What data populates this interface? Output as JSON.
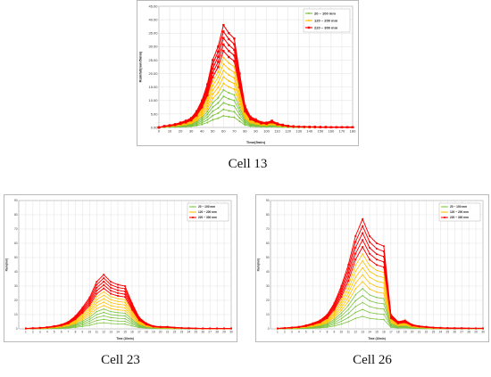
{
  "figures": [
    {
      "caption": "Cell 13"
    },
    {
      "caption": "Cell 23"
    },
    {
      "caption": "Cell 26"
    }
  ],
  "colors": {
    "green": "#7cc242",
    "yellow": "#ffc000",
    "red": "#ff0000",
    "grid": "#d9d9d9",
    "axis": "#808080"
  },
  "chart_data": [
    {
      "type": "line",
      "title": "",
      "xlabel": "Time(5min)",
      "ylabel": "Rainfall(mm/5min)",
      "xlim": [
        0,
        180
      ],
      "ylim": [
        0,
        45
      ],
      "xticks": [
        0,
        10,
        20,
        30,
        40,
        50,
        60,
        70,
        80,
        90,
        100,
        110,
        120,
        130,
        140,
        150,
        160,
        170,
        180
      ],
      "xtick_labels": [
        "0",
        "10",
        "20",
        "30",
        "40",
        "50",
        "60",
        "70",
        "80",
        "90",
        "100",
        "110",
        "120",
        "130",
        "140",
        "150",
        "160",
        "170",
        "180"
      ],
      "yticks": [
        0,
        5,
        10,
        15,
        20,
        25,
        30,
        35,
        40,
        45
      ],
      "ytick_labels": [
        "0.00",
        "5.00",
        "10.00",
        "15.00",
        "20.00",
        "25.00",
        "30.00",
        "35.00",
        "40.00",
        "45.00"
      ],
      "grid": true,
      "legend_position": "top-right",
      "legend": [
        "20 ~ 100 mm",
        "120 ~ 200 mm",
        "220 ~ 300 mm"
      ],
      "x": [
        0,
        5,
        10,
        15,
        20,
        25,
        30,
        35,
        40,
        45,
        50,
        55,
        60,
        65,
        70,
        75,
        80,
        85,
        90,
        95,
        100,
        105,
        110,
        115,
        120,
        125,
        130,
        135,
        140,
        145,
        150,
        155,
        160,
        165,
        170,
        175,
        180
      ],
      "base_profile": [
        0,
        0.5,
        0.8,
        1.2,
        1.8,
        2.5,
        3.5,
        6,
        10,
        16,
        25,
        30,
        38,
        35,
        33,
        20,
        8,
        4,
        3,
        2,
        1.8,
        2.5,
        1.5,
        1,
        0.6,
        0.4,
        0.3,
        0.25,
        0.2,
        0.2,
        0.15,
        0.15,
        0.1,
        0.1,
        0.1,
        0.1,
        0.1
      ],
      "series_scale_min": 0.05,
      "series_groups": [
        {
          "name": "20 ~ 100 mm",
          "color_key": "green",
          "members": 5
        },
        {
          "name": "120 ~ 200 mm",
          "color_key": "yellow",
          "members": 5
        },
        {
          "name": "220 ~ 300 mm",
          "color_key": "red",
          "members": 5
        }
      ]
    },
    {
      "type": "line",
      "title": "",
      "xlabel": "Time (10min)",
      "ylabel": "Rain(mm)",
      "xlim": [
        0,
        30
      ],
      "ylim": [
        0,
        90
      ],
      "xticks": [
        1,
        2,
        3,
        4,
        5,
        6,
        7,
        8,
        9,
        10,
        11,
        12,
        13,
        14,
        15,
        16,
        17,
        18,
        19,
        20,
        21,
        22,
        23,
        24,
        25,
        26,
        27,
        28,
        29,
        30
      ],
      "xtick_labels": [
        "1",
        "2",
        "3",
        "4",
        "5",
        "6",
        "7",
        "8",
        "9",
        "10",
        "11",
        "12",
        "13",
        "14",
        "15",
        "16",
        "17",
        "18",
        "19",
        "20",
        "21",
        "22",
        "23",
        "24",
        "25",
        "26",
        "27",
        "28",
        "29",
        "30"
      ],
      "yticks": [
        0,
        10,
        20,
        30,
        40,
        50,
        60,
        70,
        80,
        90
      ],
      "ytick_labels": [
        "0",
        "10",
        "20",
        "30",
        "40",
        "50",
        "60",
        "70",
        "80",
        "90"
      ],
      "grid": true,
      "legend_position": "top-right",
      "legend": [
        "20 ~ 100 mm",
        "120 ~ 200 mm",
        "220 ~ 300 mm"
      ],
      "x": [
        1,
        2,
        3,
        4,
        5,
        6,
        7,
        8,
        9,
        10,
        11,
        12,
        13,
        14,
        15,
        16,
        17,
        18,
        19,
        20,
        21,
        22,
        23,
        24,
        25,
        26,
        27,
        28,
        29,
        30
      ],
      "base_profile": [
        0.3,
        0.5,
        0.8,
        1.2,
        2,
        3,
        5,
        9,
        15,
        22,
        33,
        38,
        33,
        31,
        30,
        18,
        8,
        4,
        2,
        1.5,
        1.5,
        1,
        0.7,
        0.5,
        0.4,
        0.3,
        0.3,
        0.3,
        0.3,
        0.3
      ],
      "series_scale_min": 0.05,
      "series_groups": [
        {
          "name": "20 ~ 100 mm",
          "color_key": "green",
          "members": 5
        },
        {
          "name": "120 ~ 200 mm",
          "color_key": "yellow",
          "members": 5
        },
        {
          "name": "220 ~ 300 mm",
          "color_key": "red",
          "members": 5
        }
      ]
    },
    {
      "type": "line",
      "title": "",
      "xlabel": "Time (10min)",
      "ylabel": "Rain(mm)",
      "xlim": [
        0,
        30
      ],
      "ylim": [
        0,
        90
      ],
      "xticks": [
        1,
        2,
        3,
        4,
        5,
        6,
        7,
        8,
        9,
        10,
        11,
        12,
        13,
        14,
        15,
        16,
        17,
        18,
        19,
        20,
        21,
        22,
        23,
        24,
        25,
        26,
        27,
        28,
        29,
        30
      ],
      "xtick_labels": [
        "1",
        "2",
        "3",
        "4",
        "5",
        "6",
        "7",
        "8",
        "9",
        "10",
        "11",
        "12",
        "13",
        "14",
        "15",
        "16",
        "17",
        "18",
        "19",
        "20",
        "21",
        "22",
        "23",
        "24",
        "25",
        "26",
        "27",
        "28",
        "29",
        "30"
      ],
      "yticks": [
        0,
        10,
        20,
        30,
        40,
        50,
        60,
        70,
        80,
        90
      ],
      "ytick_labels": [
        "0",
        "10",
        "20",
        "30",
        "40",
        "50",
        "60",
        "70",
        "80",
        "90"
      ],
      "grid": true,
      "legend_position": "top-right",
      "legend": [
        "20 ~ 100 mm",
        "120 ~ 200 mm",
        "220 ~ 300 mm"
      ],
      "x": [
        1,
        2,
        3,
        4,
        5,
        6,
        7,
        8,
        9,
        10,
        11,
        12,
        13,
        14,
        15,
        16,
        17,
        18,
        19,
        20,
        21,
        22,
        23,
        24,
        25,
        26,
        27,
        28,
        29,
        30
      ],
      "base_profile": [
        0.3,
        0.6,
        1,
        1.5,
        2.5,
        4,
        6,
        10,
        18,
        30,
        45,
        65,
        77,
        65,
        60,
        58,
        10,
        5,
        6,
        3,
        2,
        1.5,
        1,
        0.8,
        0.6,
        0.5,
        0.5,
        0.4,
        0.4,
        0.4
      ],
      "series_scale_min": 0.05,
      "series_groups": [
        {
          "name": "20 ~ 100 mm",
          "color_key": "green",
          "members": 5
        },
        {
          "name": "120 ~ 200 mm",
          "color_key": "yellow",
          "members": 5
        },
        {
          "name": "220 ~ 300 mm",
          "color_key": "red",
          "members": 5
        }
      ]
    }
  ]
}
